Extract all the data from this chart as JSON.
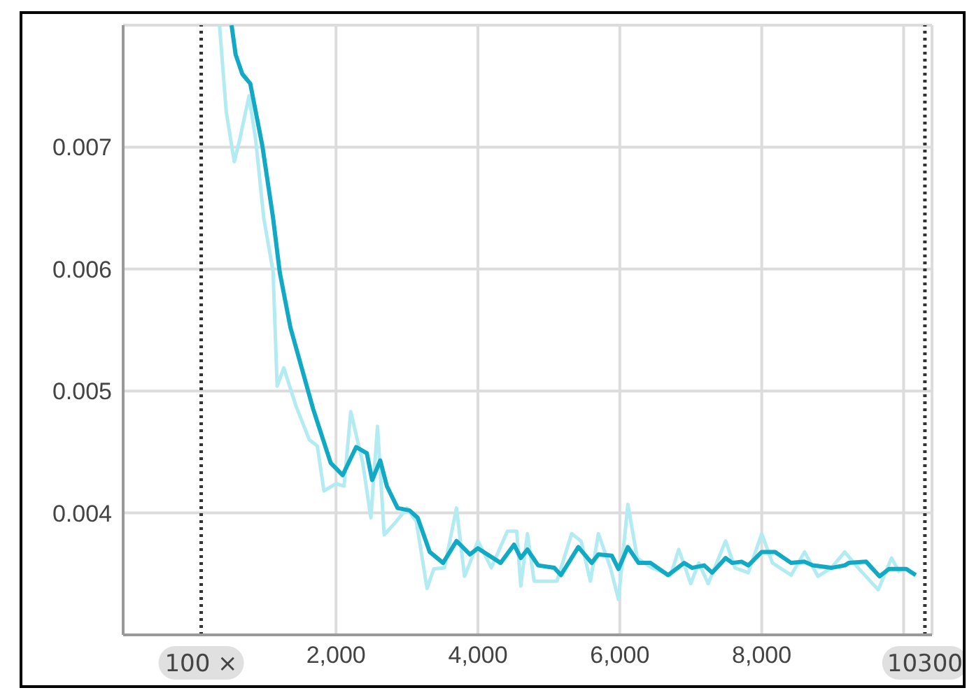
{
  "chart_data": {
    "type": "line",
    "xlim": [
      -1000,
      10400
    ],
    "xticks": [
      {
        "value": 2000,
        "label": "2,000"
      },
      {
        "value": 4000,
        "label": "4,000"
      },
      {
        "value": 6000,
        "label": "6,000"
      },
      {
        "value": 8000,
        "label": "8,000"
      },
      {
        "value": 10000,
        "label": null
      }
    ],
    "ylim": [
      0.003,
      0.008
    ],
    "yticks": [
      {
        "value": 0.003,
        "label": null
      },
      0.004,
      0.005,
      0.006,
      0.007,
      {
        "value": 0.008,
        "label": null
      }
    ],
    "grid": true,
    "marker": "none",
    "line_style": "solid",
    "ref_lines": [
      {
        "axis": "x",
        "value": 100,
        "label": "100 ×",
        "color": "#333333",
        "line_style": "dotted"
      },
      {
        "axis": "x",
        "value": 10300,
        "label": "10300",
        "color": "#333333",
        "line_style": "dotted"
      }
    ],
    "series": [
      {
        "color": "#b2ebf2",
        "x": [
          358,
          453,
          566,
          642,
          774,
          868,
          981,
          1113,
          1170,
          1264,
          1434,
          1623,
          1736,
          1830,
          2000,
          2113,
          2208,
          2377,
          2491,
          2585,
          2679,
          2849,
          3000,
          3132,
          3283,
          3377,
          3528,
          3698,
          3811,
          3887,
          4000,
          4189,
          4415,
          4547,
          4604,
          4698,
          4792,
          5113,
          5321,
          5453,
          5585,
          5698,
          5868,
          5981,
          6113,
          6245,
          6453,
          6717,
          6830,
          7000,
          7113,
          7245,
          7491,
          7623,
          7811,
          8000,
          8151,
          8415,
          8604,
          8792,
          8981,
          9170,
          9358,
          9642,
          9830,
          9943
        ],
        "values": [
          0.008,
          0.00729,
          0.00688,
          0.00706,
          0.00742,
          0.00706,
          0.00642,
          0.00598,
          0.00504,
          0.00519,
          0.00488,
          0.0046,
          0.00455,
          0.00418,
          0.00424,
          0.00422,
          0.00483,
          0.00441,
          0.00396,
          0.00471,
          0.00382,
          0.00393,
          0.00404,
          0.00393,
          0.00338,
          0.00354,
          0.00355,
          0.00404,
          0.00348,
          0.00359,
          0.00377,
          0.00355,
          0.00385,
          0.00385,
          0.0034,
          0.00383,
          0.00344,
          0.00344,
          0.00383,
          0.00377,
          0.00344,
          0.00383,
          0.00355,
          0.00329,
          0.00407,
          0.00363,
          0.00355,
          0.00349,
          0.0037,
          0.00342,
          0.00359,
          0.00342,
          0.00377,
          0.00355,
          0.00351,
          0.00383,
          0.00359,
          0.00349,
          0.00368,
          0.00348,
          0.00355,
          0.00368,
          0.00355,
          0.00337,
          0.00363,
          0.00351
        ]
      },
      {
        "color": "#12a9c4",
        "x": [
          528,
          585,
          679,
          792,
          962,
          1113,
          1208,
          1358,
          1679,
          1925,
          2094,
          2283,
          2434,
          2509,
          2623,
          2717,
          2868,
          3038,
          3151,
          3321,
          3509,
          3698,
          3887,
          4000,
          4321,
          4509,
          4604,
          4698,
          4849,
          5075,
          5170,
          5415,
          5604,
          5698,
          5887,
          5981,
          6113,
          6264,
          6434,
          6679,
          6906,
          7019,
          7189,
          7302,
          7491,
          7585,
          7717,
          7811,
          8000,
          8189,
          8415,
          8604,
          8717,
          8981,
          9170,
          9226,
          9472,
          9660,
          9792,
          10038,
          10170
        ],
        "values": [
          0.008,
          0.00776,
          0.0076,
          0.00752,
          0.00701,
          0.00642,
          0.00597,
          0.00552,
          0.00485,
          0.00441,
          0.00431,
          0.00454,
          0.00449,
          0.00427,
          0.00443,
          0.00422,
          0.00404,
          0.00402,
          0.00396,
          0.00368,
          0.00359,
          0.00377,
          0.00366,
          0.00371,
          0.00359,
          0.00374,
          0.00363,
          0.0037,
          0.00357,
          0.00355,
          0.00349,
          0.00372,
          0.00359,
          0.00366,
          0.00365,
          0.00354,
          0.00372,
          0.00359,
          0.00359,
          0.00349,
          0.00359,
          0.00355,
          0.00357,
          0.00351,
          0.00363,
          0.00359,
          0.0036,
          0.00357,
          0.00368,
          0.00368,
          0.00359,
          0.0036,
          0.00357,
          0.00355,
          0.00357,
          0.00359,
          0.0036,
          0.00348,
          0.00354,
          0.00354,
          0.00349
        ]
      }
    ]
  }
}
